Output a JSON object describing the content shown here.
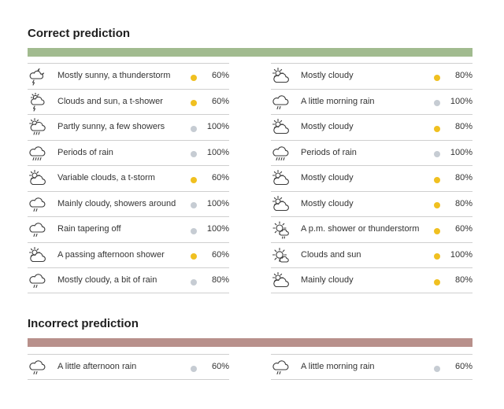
{
  "colors": {
    "correct_bar": "#a1bb8f",
    "incorrect_bar": "#b8908b",
    "dot_yellow": "#f0c020",
    "dot_gray": "#c6ccd3",
    "icon_stroke": "#3a3a3a"
  },
  "correct": {
    "title": "Correct prediction",
    "left": [
      {
        "icon": "night-thunderstorm-icon",
        "text": "Mostly sunny, a  thunderstorm",
        "dot": "yellow",
        "pct": "60%"
      },
      {
        "icon": "sun-cloud-thunder-icon",
        "text": "Clouds and sun, a t-shower",
        "dot": "yellow",
        "pct": "60%"
      },
      {
        "icon": "sun-cloud-rain-icon",
        "text": "Partly sunny, a few showers",
        "dot": "gray",
        "pct": "100%"
      },
      {
        "icon": "cloud-rain-icon",
        "text": "Periods of rain",
        "dot": "gray",
        "pct": "100%"
      },
      {
        "icon": "sun-cloud-icon",
        "text": "Variable clouds, a t-storm",
        "dot": "yellow",
        "pct": "60%"
      },
      {
        "icon": "cloud-drizzle-icon",
        "text": "Mainly cloudy, showers around",
        "dot": "gray",
        "pct": "100%"
      },
      {
        "icon": "cloud-drizzle-icon",
        "text": "Rain tapering off",
        "dot": "gray",
        "pct": "100%"
      },
      {
        "icon": "sun-cloud-icon",
        "text": "A passing afternoon shower",
        "dot": "yellow",
        "pct": "60%"
      },
      {
        "icon": "cloud-drizzle-icon",
        "text": "Mostly cloudy, a bit of rain",
        "dot": "gray",
        "pct": "80%"
      }
    ],
    "right": [
      {
        "icon": "sun-cloud-icon",
        "text": "Mostly cloudy",
        "dot": "yellow",
        "pct": "80%"
      },
      {
        "icon": "cloud-drizzle-icon",
        "text": "A little morning rain",
        "dot": "gray",
        "pct": "100%"
      },
      {
        "icon": "sun-cloud-icon",
        "text": "Mostly cloudy",
        "dot": "yellow",
        "pct": "80%"
      },
      {
        "icon": "cloud-rain-icon",
        "text": "Periods of rain",
        "dot": "gray",
        "pct": "100%"
      },
      {
        "icon": "sun-cloud-icon",
        "text": "Mostly cloudy",
        "dot": "yellow",
        "pct": "80%"
      },
      {
        "icon": "sun-cloud-icon",
        "text": "Mostly cloudy",
        "dot": "yellow",
        "pct": "80%"
      },
      {
        "icon": "sun-shower-icon",
        "text": "A p.m. shower or thunderstorm",
        "dot": "yellow",
        "pct": "60%"
      },
      {
        "icon": "sun-icon",
        "text": "Clouds and sun",
        "dot": "yellow",
        "pct": "100%"
      },
      {
        "icon": "sun-cloud-icon",
        "text": "Mainly cloudy",
        "dot": "yellow",
        "pct": "80%"
      }
    ]
  },
  "incorrect": {
    "title": "Incorrect prediction",
    "left": [
      {
        "icon": "cloud-drizzle-icon",
        "text": "A little afternoon rain",
        "dot": "gray",
        "pct": "60%"
      }
    ],
    "right": [
      {
        "icon": "cloud-drizzle-icon",
        "text": "A little morning rain",
        "dot": "gray",
        "pct": "60%"
      }
    ]
  }
}
